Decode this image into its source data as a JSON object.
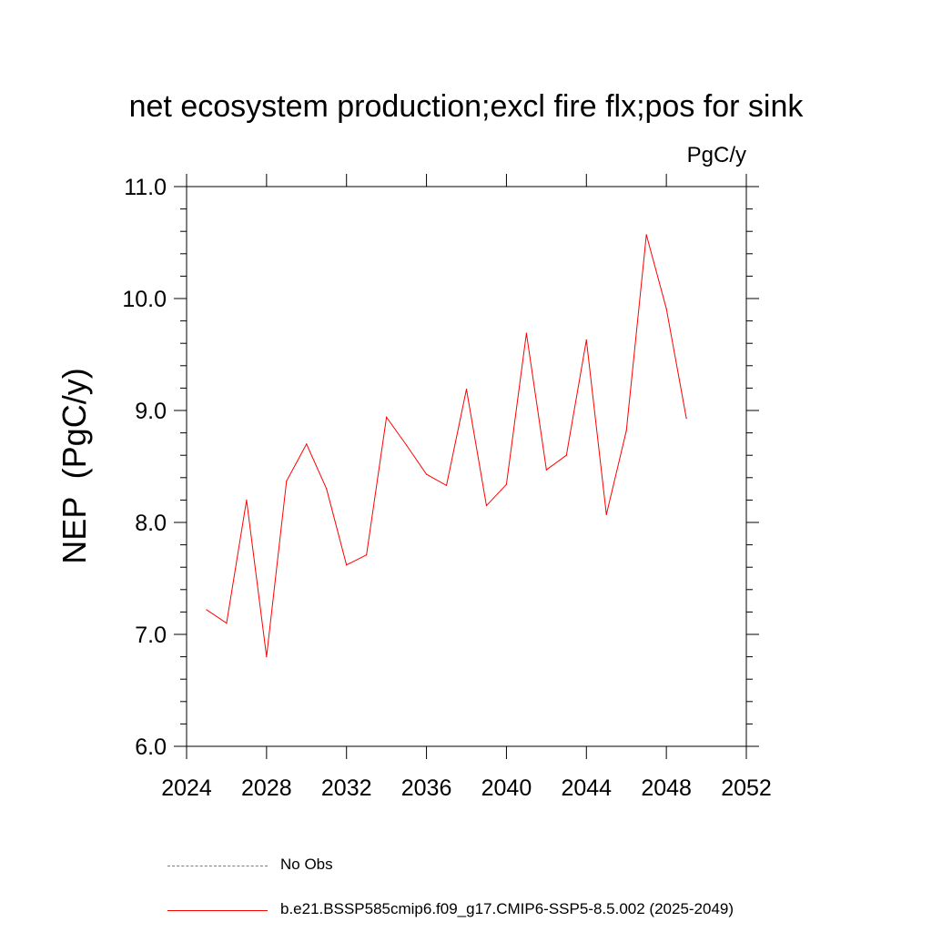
{
  "chart_data": {
    "type": "line",
    "title": "net ecosystem production;excl fire flx;pos for sink",
    "units": "PgC/y",
    "ylabel": "NEP  (PgC/y)",
    "xlabel": "",
    "xlim": [
      2024,
      2052
    ],
    "ylim": [
      6.0,
      11.0
    ],
    "x_ticks": [
      2024,
      2028,
      2032,
      2036,
      2040,
      2044,
      2048,
      2052
    ],
    "x_tick_labels": [
      "2024",
      "2028",
      "2032",
      "2036",
      "2040",
      "2044",
      "2048",
      "2052"
    ],
    "y_ticks": [
      6.0,
      7.0,
      8.0,
      9.0,
      10.0,
      11.0
    ],
    "y_tick_labels": [
      "6.0",
      "7.0",
      "8.0",
      "9.0",
      "10.0",
      "11.0"
    ],
    "grid": false,
    "legend_placement": "bottom",
    "series": [
      {
        "name": "b.e21.BSSP585cmip6.f09_g17.CMIP6-SSP5-8.5.002 (2025-2049)",
        "color": "#ff0000",
        "x": [
          2025,
          2026,
          2027,
          2028,
          2029,
          2030,
          2031,
          2032,
          2033,
          2034,
          2035,
          2036,
          2037,
          2038,
          2039,
          2040,
          2041,
          2042,
          2043,
          2044,
          2045,
          2046,
          2047,
          2048,
          2049
        ],
        "values": [
          7.22,
          7.1,
          8.2,
          6.8,
          8.37,
          8.7,
          8.3,
          7.62,
          7.71,
          8.94,
          8.69,
          8.43,
          8.33,
          9.19,
          8.15,
          8.34,
          9.69,
          8.47,
          8.6,
          9.63,
          8.07,
          8.82,
          10.57,
          9.91,
          8.93
        ]
      }
    ],
    "legend": [
      {
        "label": "No Obs",
        "color": "#7b6fbf",
        "style": "dashed"
      },
      {
        "label": "b.e21.BSSP585cmip6.f09_g17.CMIP6-SSP5-8.5.002 (2025-2049)",
        "color": "#ff0000",
        "style": "solid"
      }
    ]
  }
}
